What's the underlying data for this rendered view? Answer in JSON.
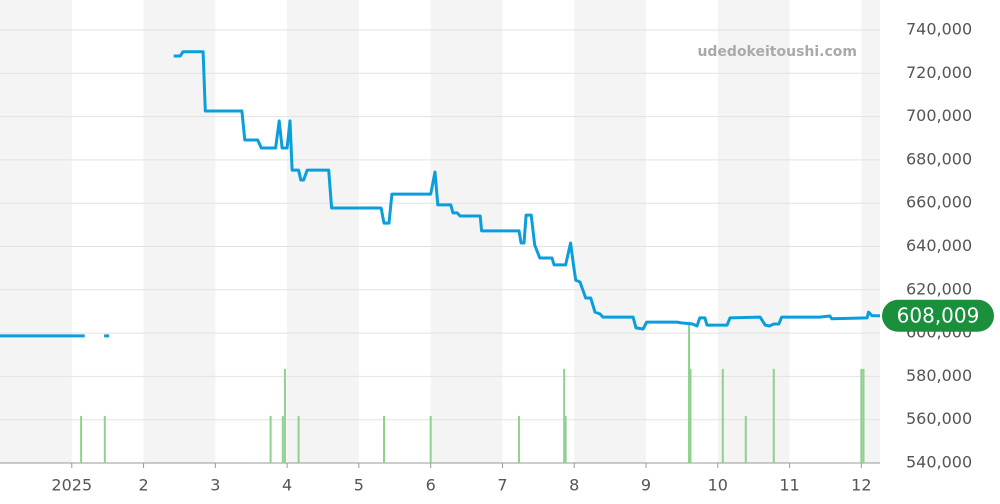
{
  "chart_data": {
    "type": "line",
    "watermark": "udedokeitoushi.com",
    "xlim": [
      0,
      12.26
    ],
    "ylim": [
      540000,
      740000
    ],
    "y2lim": [
      0,
      9.2
    ],
    "grid": true,
    "xticks": [
      {
        "value": 1,
        "label": "2025"
      },
      2,
      3,
      4,
      5,
      6,
      7,
      8,
      9,
      10,
      11,
      12
    ],
    "yticks": [
      {
        "value": 540000,
        "label": "540,000"
      },
      {
        "value": 560000,
        "label": "560,000"
      },
      {
        "value": 580000,
        "label": "580,000"
      },
      {
        "value": 600000,
        "label": "600,000"
      },
      {
        "value": 620000,
        "label": "620,000"
      },
      {
        "value": 640000,
        "label": "640,000"
      },
      {
        "value": 660000,
        "label": "660,000"
      },
      {
        "value": 680000,
        "label": "680,000"
      },
      {
        "value": 700000,
        "label": "700,000"
      },
      {
        "value": 720000,
        "label": "720,000"
      },
      {
        "value": 740000,
        "label": "740,000"
      }
    ],
    "series": [
      {
        "color": "#0a9fdc",
        "x": [
          0,
          1.18,
          1.3,
          1.45,
          1.52,
          2.0,
          2.42,
          2.51,
          2.55,
          2.83,
          2.86,
          3.37,
          3.41,
          3.59,
          3.64,
          3.84,
          3.89,
          3.93,
          4.0,
          4.04,
          4.07,
          4.16,
          4.19,
          4.23,
          4.28,
          4.58,
          4.62,
          5.31,
          5.35,
          5.42,
          5.46,
          6.0,
          6.06,
          6.1,
          6.28,
          6.31,
          6.37,
          6.41,
          6.69,
          6.71,
          7.23,
          7.26,
          7.3,
          7.33,
          7.4,
          7.45,
          7.52,
          7.69,
          7.72,
          7.88,
          7.95,
          7.99,
          8.02,
          8.08,
          8.16,
          8.23,
          8.29,
          8.36,
          8.4,
          8.82,
          8.86,
          8.96,
          9.01,
          9.43,
          9.49,
          9.65,
          9.71,
          9.75,
          9.82,
          9.85,
          10.13,
          10.17,
          10.59,
          10.66,
          10.72,
          10.78,
          10.85,
          10.89,
          11.42,
          11.56,
          11.59,
          12.08,
          12.1,
          12.15,
          12.26
        ],
        "values": [
          598700,
          598700,
          null,
          598700,
          598700,
          null,
          728000,
          728000,
          730000,
          730000,
          702600,
          702600,
          689200,
          689200,
          685500,
          685500,
          698000,
          685500,
          685500,
          698000,
          675300,
          675300,
          670700,
          670700,
          675300,
          675300,
          657800,
          657800,
          650800,
          650800,
          664200,
          664200,
          674400,
          659200,
          659200,
          655500,
          655500,
          654100,
          654100,
          647200,
          647200,
          641600,
          641600,
          654500,
          654500,
          640700,
          634700,
          634700,
          631500,
          631500,
          641600,
          631500,
          624500,
          623600,
          616200,
          616200,
          609700,
          608800,
          607400,
          607400,
          602400,
          601900,
          605100,
          605100,
          604700,
          604200,
          603300,
          607000,
          607000,
          603700,
          603700,
          607000,
          607400,
          603700,
          603300,
          604200,
          604200,
          607400,
          607400,
          607900,
          606600,
          607000,
          609700,
          608009,
          608009
        ],
        "value_labels": [
          null,
          null,
          null,
          null,
          null,
          null,
          null,
          null,
          null,
          null,
          null,
          null,
          null,
          null,
          null,
          null,
          null,
          null,
          null,
          null,
          null,
          null,
          null,
          null,
          null,
          null,
          null,
          null,
          null,
          null,
          null,
          null,
          null,
          null,
          null,
          null,
          null,
          null,
          null,
          null,
          null,
          null,
          null,
          null,
          null,
          null,
          null,
          null,
          null,
          null,
          null,
          null,
          null,
          null,
          null,
          null,
          null,
          null,
          null,
          null,
          null,
          null,
          null,
          null,
          null,
          null,
          null,
          null,
          null,
          null,
          null,
          null,
          null,
          null,
          null,
          null,
          null,
          null,
          null,
          null,
          null,
          null,
          null,
          null,
          "608,009"
        ]
      },
      {
        "type": "bar",
        "color": "#8fd18f",
        "axis": "y2",
        "x": [
          1.13,
          1.46,
          3.77,
          3.94,
          3.97,
          4.16,
          5.35,
          6.0,
          7.23,
          7.86,
          7.88,
          9.6,
          9.62,
          10.07,
          10.39,
          10.78,
          12.0,
          12.03
        ],
        "values": [
          1,
          1,
          1,
          1,
          2,
          1,
          1,
          1,
          1,
          2,
          1,
          3,
          2,
          2,
          1,
          2,
          2,
          2
        ]
      }
    ]
  }
}
